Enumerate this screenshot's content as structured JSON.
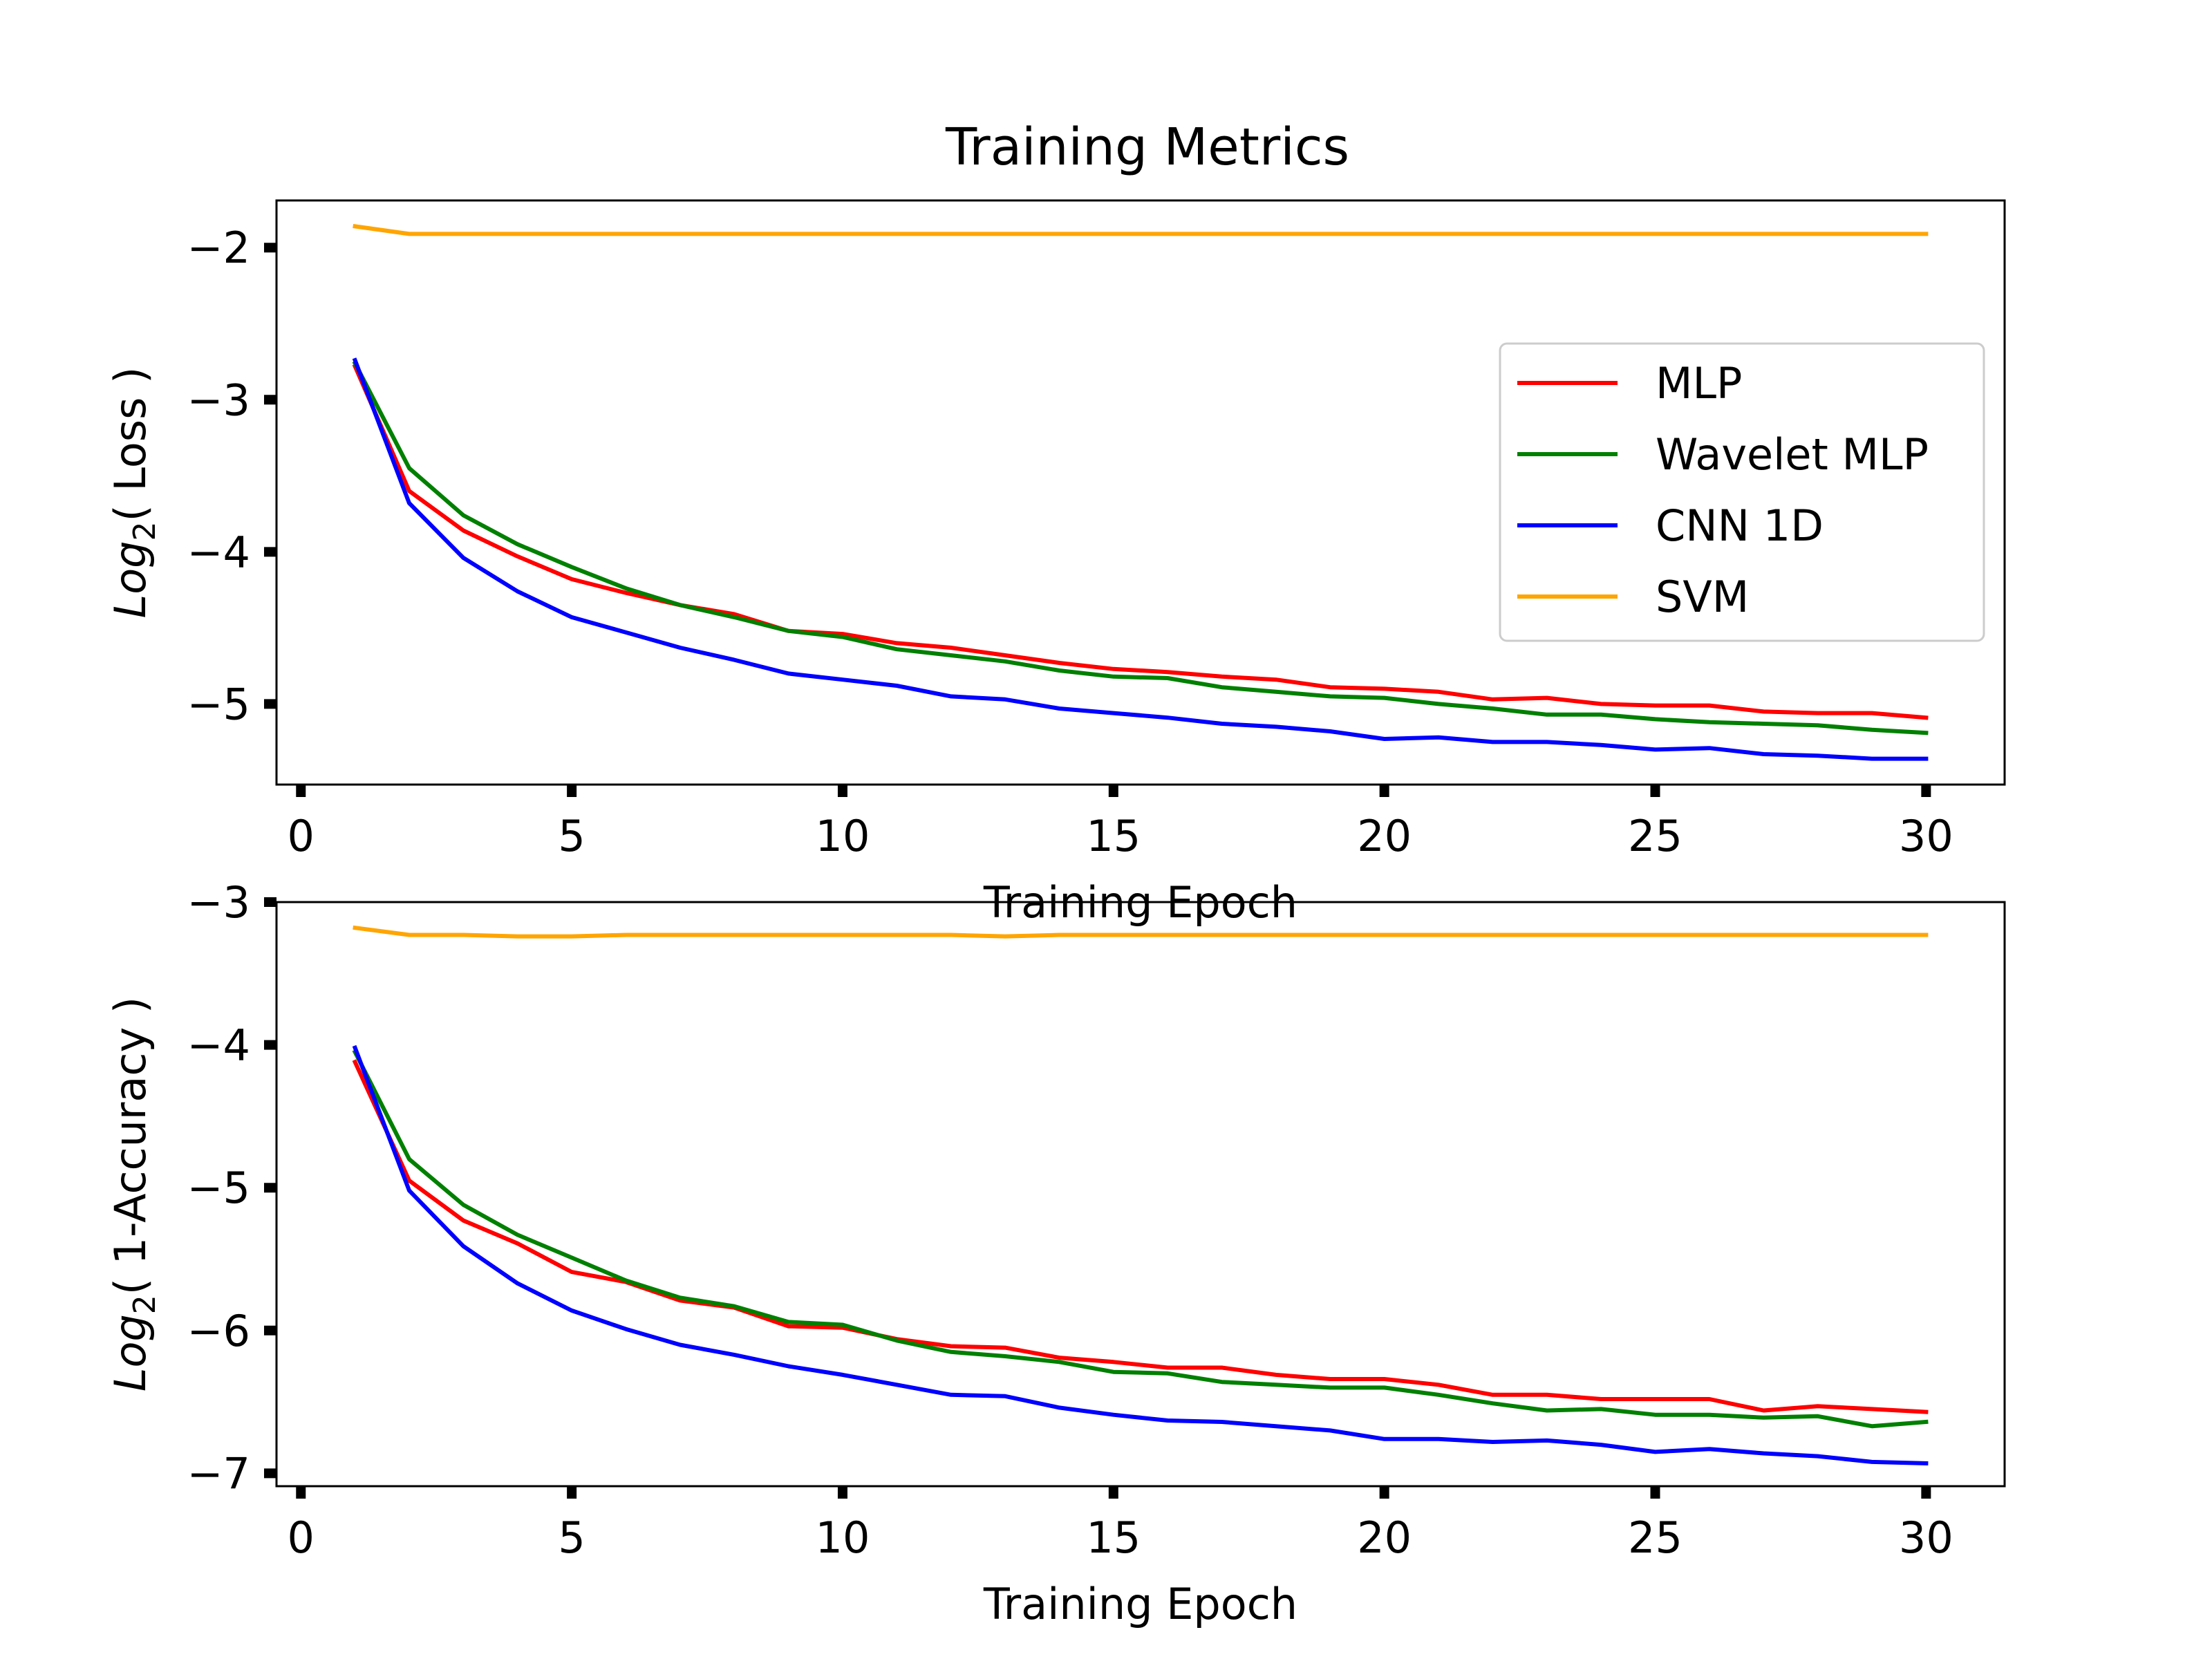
{
  "figure": {
    "title": "Training Metrics"
  },
  "legend": {
    "location": "upper-right of top panel",
    "entries": [
      {
        "label": "MLP",
        "color": "#ff0000"
      },
      {
        "label": "Wavelet MLP",
        "color": "#008000"
      },
      {
        "label": "CNN 1D",
        "color": "#0000ff"
      },
      {
        "label": "SVM",
        "color": "#ffa500"
      }
    ]
  },
  "chart_data": [
    {
      "type": "line",
      "title": "Training Metrics",
      "xlabel": "Training Epoch",
      "ylabel_main": "Log",
      "ylabel_sub": "2",
      "ylabel_rest": "( Loss )",
      "xlim": [
        -0.45,
        31.45
      ],
      "ylim": [
        -5.53,
        -1.69
      ],
      "x_ticks": [
        0,
        5,
        10,
        15,
        20,
        25,
        30
      ],
      "y_ticks": [
        -5,
        -4,
        -3,
        -2
      ],
      "legend": true,
      "grid": false,
      "x": [
        1,
        2,
        3,
        4,
        5,
        6,
        7,
        8,
        9,
        10,
        11,
        12,
        13,
        14,
        15,
        16,
        17,
        18,
        19,
        20,
        21,
        22,
        23,
        24,
        25,
        26,
        27,
        28,
        29,
        30
      ],
      "series": [
        {
          "name": "MLP",
          "color": "#ff0000",
          "values": [
            -2.78,
            -3.6,
            -3.86,
            -4.03,
            -4.18,
            -4.27,
            -4.35,
            -4.41,
            -4.52,
            -4.54,
            -4.6,
            -4.63,
            -4.68,
            -4.73,
            -4.77,
            -4.79,
            -4.82,
            -4.84,
            -4.89,
            -4.9,
            -4.92,
            -4.97,
            -4.96,
            -5.0,
            -5.01,
            -5.01,
            -5.05,
            -5.06,
            -5.06,
            -5.09
          ]
        },
        {
          "name": "Wavelet MLP",
          "color": "#008000",
          "values": [
            -2.76,
            -3.45,
            -3.76,
            -3.95,
            -4.1,
            -4.24,
            -4.35,
            -4.43,
            -4.52,
            -4.56,
            -4.64,
            -4.68,
            -4.72,
            -4.78,
            -4.82,
            -4.83,
            -4.89,
            -4.92,
            -4.95,
            -4.96,
            -5.0,
            -5.03,
            -5.07,
            -5.07,
            -5.1,
            -5.12,
            -5.13,
            -5.14,
            -5.17,
            -5.19
          ]
        },
        {
          "name": "CNN 1D",
          "color": "#0000ff",
          "values": [
            -2.74,
            -3.68,
            -4.04,
            -4.26,
            -4.43,
            -4.53,
            -4.63,
            -4.71,
            -4.8,
            -4.84,
            -4.88,
            -4.95,
            -4.97,
            -5.03,
            -5.06,
            -5.09,
            -5.13,
            -5.15,
            -5.18,
            -5.23,
            -5.22,
            -5.25,
            -5.25,
            -5.27,
            -5.3,
            -5.29,
            -5.33,
            -5.34,
            -5.36,
            -5.36
          ]
        },
        {
          "name": "SVM",
          "color": "#ffa500",
          "values": [
            -1.86,
            -1.91,
            -1.91,
            -1.91,
            -1.91,
            -1.91,
            -1.91,
            -1.91,
            -1.91,
            -1.91,
            -1.91,
            -1.91,
            -1.91,
            -1.91,
            -1.91,
            -1.91,
            -1.91,
            -1.91,
            -1.91,
            -1.91,
            -1.91,
            -1.91,
            -1.91,
            -1.91,
            -1.91,
            -1.91,
            -1.91,
            -1.91,
            -1.91,
            -1.91
          ]
        }
      ]
    },
    {
      "type": "line",
      "title": "",
      "xlabel": "Training Epoch",
      "ylabel_main": "Log",
      "ylabel_sub": "2",
      "ylabel_rest": "( 1-Accuracy )",
      "xlim": [
        -0.45,
        31.45
      ],
      "ylim": [
        -7.09,
        -3.0
      ],
      "x_ticks": [
        0,
        5,
        10,
        15,
        20,
        25,
        30
      ],
      "y_ticks": [
        -7,
        -6,
        -5,
        -4,
        -3
      ],
      "legend": false,
      "grid": false,
      "x": [
        1,
        2,
        3,
        4,
        5,
        6,
        7,
        8,
        9,
        10,
        11,
        12,
        13,
        14,
        15,
        16,
        17,
        18,
        19,
        20,
        21,
        22,
        23,
        24,
        25,
        26,
        27,
        28,
        29,
        30
      ],
      "series": [
        {
          "name": "MLP",
          "color": "#ff0000",
          "values": [
            -4.12,
            -4.95,
            -5.23,
            -5.39,
            -5.59,
            -5.66,
            -5.79,
            -5.84,
            -5.97,
            -5.98,
            -6.06,
            -6.11,
            -6.12,
            -6.19,
            -6.22,
            -6.26,
            -6.26,
            -6.31,
            -6.34,
            -6.34,
            -6.38,
            -6.45,
            -6.45,
            -6.48,
            -6.48,
            -6.48,
            -6.56,
            -6.53,
            -6.55,
            -6.57
          ]
        },
        {
          "name": "Wavelet MLP",
          "color": "#008000",
          "values": [
            -4.05,
            -4.8,
            -5.12,
            -5.33,
            -5.49,
            -5.65,
            -5.77,
            -5.83,
            -5.94,
            -5.96,
            -6.07,
            -6.15,
            -6.18,
            -6.22,
            -6.29,
            -6.3,
            -6.36,
            -6.38,
            -6.4,
            -6.4,
            -6.45,
            -6.51,
            -6.56,
            -6.55,
            -6.59,
            -6.59,
            -6.61,
            -6.6,
            -6.67,
            -6.64
          ]
        },
        {
          "name": "CNN 1D",
          "color": "#0000ff",
          "values": [
            -4.02,
            -5.02,
            -5.41,
            -5.67,
            -5.86,
            -5.99,
            -6.1,
            -6.17,
            -6.25,
            -6.31,
            -6.38,
            -6.45,
            -6.46,
            -6.54,
            -6.59,
            -6.63,
            -6.64,
            -6.67,
            -6.7,
            -6.76,
            -6.76,
            -6.78,
            -6.77,
            -6.8,
            -6.85,
            -6.83,
            -6.86,
            -6.88,
            -6.92,
            -6.93
          ]
        },
        {
          "name": "SVM",
          "color": "#ffa500",
          "values": [
            -3.18,
            -3.23,
            -3.23,
            -3.24,
            -3.24,
            -3.23,
            -3.23,
            -3.23,
            -3.23,
            -3.23,
            -3.23,
            -3.23,
            -3.24,
            -3.23,
            -3.23,
            -3.23,
            -3.23,
            -3.23,
            -3.23,
            -3.23,
            -3.23,
            -3.23,
            -3.23,
            -3.23,
            -3.23,
            -3.23,
            -3.23,
            -3.23,
            -3.23,
            -3.23
          ]
        }
      ]
    }
  ]
}
